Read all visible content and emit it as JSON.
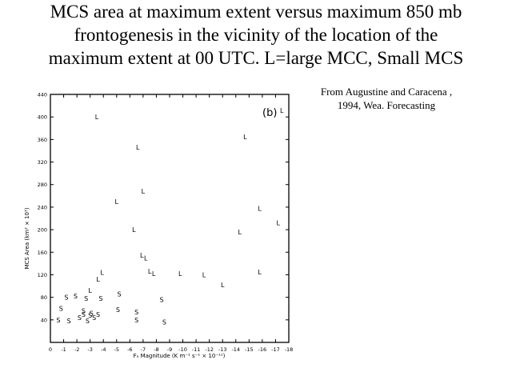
{
  "slide": {
    "title_lines": [
      "MCS area at maximum extent versus maximum 850 mb",
      "frontogenesis in the vicinity of the location of the",
      "maximum extent at 00 UTC. L=large MCC, Small MCS"
    ],
    "source_lines": [
      "From Augustine and Caracena ,",
      "1994, Wea. Forecasting"
    ]
  },
  "chart_data": {
    "type": "scatter",
    "panel_label": "(b)",
    "panel_marker": "L",
    "xlabel": "Fₙ Magnitude  (K m⁻¹ s⁻¹ × 10⁻¹¹)",
    "ylabel": "MCS Area (km² × 10³)",
    "xlim": [
      0,
      18
    ],
    "ylim": [
      0,
      440
    ],
    "x_ticks": [
      0,
      1,
      2,
      3,
      4,
      5,
      6,
      7,
      8,
      9,
      10,
      11,
      12,
      13,
      14,
      15,
      16,
      17,
      18
    ],
    "x_tick_labels": [
      "0",
      "-1",
      "-2",
      "-3",
      "-4",
      "-5",
      "-6",
      "-7",
      "-8",
      "-9",
      "-10",
      "-11",
      "-12",
      "-13",
      "-14",
      "-15",
      "-16",
      "-17",
      "-18"
    ],
    "y_ticks": [
      40,
      80,
      120,
      160,
      200,
      240,
      280,
      320,
      360,
      400,
      440
    ],
    "y_tick_labels": [
      "40",
      "80",
      "120",
      "160",
      "200",
      "240",
      "280",
      "320",
      "360",
      "400",
      "440"
    ],
    "grid": false,
    "series": [
      {
        "name": "L",
        "color": "#000000",
        "points": [
          {
            "x": 3.5,
            "y": 400
          },
          {
            "x": 6.6,
            "y": 346
          },
          {
            "x": 7.0,
            "y": 268
          },
          {
            "x": 5.0,
            "y": 250
          },
          {
            "x": 6.3,
            "y": 200
          },
          {
            "x": 6.9,
            "y": 155
          },
          {
            "x": 7.2,
            "y": 150
          },
          {
            "x": 7.5,
            "y": 126
          },
          {
            "x": 7.8,
            "y": 122
          },
          {
            "x": 9.8,
            "y": 122
          },
          {
            "x": 11.6,
            "y": 120
          },
          {
            "x": 13.0,
            "y": 102
          },
          {
            "x": 14.3,
            "y": 196
          },
          {
            "x": 14.7,
            "y": 365
          },
          {
            "x": 15.8,
            "y": 238
          },
          {
            "x": 15.8,
            "y": 125
          },
          {
            "x": 17.2,
            "y": 212
          },
          {
            "x": 3.9,
            "y": 124
          },
          {
            "x": 3.6,
            "y": 112
          },
          {
            "x": 3.0,
            "y": 92
          }
        ]
      },
      {
        "name": "S",
        "color": "#000000",
        "points": [
          {
            "x": 0.6,
            "y": 40
          },
          {
            "x": 0.8,
            "y": 60
          },
          {
            "x": 1.2,
            "y": 80
          },
          {
            "x": 1.4,
            "y": 38
          },
          {
            "x": 1.9,
            "y": 82
          },
          {
            "x": 2.7,
            "y": 78
          },
          {
            "x": 2.2,
            "y": 44
          },
          {
            "x": 2.5,
            "y": 56
          },
          {
            "x": 2.5,
            "y": 50
          },
          {
            "x": 2.8,
            "y": 38
          },
          {
            "x": 3.0,
            "y": 48
          },
          {
            "x": 3.1,
            "y": 52
          },
          {
            "x": 3.3,
            "y": 44
          },
          {
            "x": 3.6,
            "y": 50
          },
          {
            "x": 3.8,
            "y": 78
          },
          {
            "x": 5.2,
            "y": 86
          },
          {
            "x": 5.1,
            "y": 58
          },
          {
            "x": 6.5,
            "y": 54
          },
          {
            "x": 6.5,
            "y": 40
          },
          {
            "x": 8.4,
            "y": 76
          },
          {
            "x": 8.6,
            "y": 36
          }
        ]
      }
    ]
  }
}
